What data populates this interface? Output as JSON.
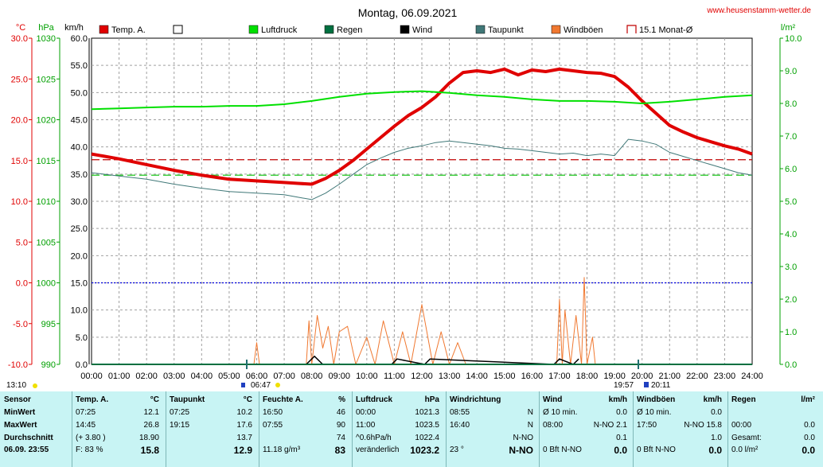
{
  "header": {
    "title": "Montag, 06.09.2021",
    "site": "www.heusenstamm-wetter.de"
  },
  "axes": {
    "temp_unit": "°C",
    "press_unit": "hPa",
    "wind_unit": "km/h",
    "rain_unit": "l/m²",
    "temp_ticks": [
      "30.0",
      "25.0",
      "20.0",
      "15.0",
      "10.0",
      "5.0",
      "0.0",
      "-5.0",
      "-10.0"
    ],
    "press_ticks": [
      "1030",
      "1025",
      "1020",
      "1015",
      "1010",
      "1005",
      "1000",
      "995",
      "990"
    ],
    "wind_ticks": [
      "60.0",
      "55.0",
      "50.0",
      "45.0",
      "40.0",
      "35.0",
      "30.0",
      "25.0",
      "20.0",
      "15.0",
      "10.0",
      "5.0",
      "0.0"
    ],
    "rain_ticks": [
      "10.0",
      "9.0",
      "8.0",
      "7.0",
      "6.0",
      "5.0",
      "4.0",
      "3.0",
      "2.0",
      "1.0",
      "0.0"
    ],
    "hour_ticks": [
      "00:00",
      "01:00",
      "02:00",
      "03:00",
      "04:00",
      "05:00",
      "06:00",
      "07:00",
      "08:00",
      "09:00",
      "10:00",
      "11:00",
      "12:00",
      "13:00",
      "14:00",
      "15:00",
      "16:00",
      "17:00",
      "18:00",
      "19:00",
      "20:00",
      "21:00",
      "22:00",
      "23:00",
      "24:00"
    ]
  },
  "legend": [
    {
      "label": "Temp. A.",
      "color": "#e00000",
      "style": "fill"
    },
    {
      "label": "",
      "color": "#ffffff",
      "style": "box"
    },
    {
      "label": "Luftdruck",
      "color": "#00e000",
      "style": "fill"
    },
    {
      "label": "Regen",
      "color": "#007040",
      "style": "fill"
    },
    {
      "label": "Wind",
      "color": "#000000",
      "style": "fill"
    },
    {
      "label": "Taupunkt",
      "color": "#407878",
      "style": "fill"
    },
    {
      "label": "Windböen",
      "color": "#f07830",
      "style": "fill"
    },
    {
      "label": "15.1 Monat-Ø",
      "color": "#c00000",
      "style": "outline"
    }
  ],
  "markers": {
    "sunrise_label": "06:47",
    "sunset_label": "19:57",
    "moon_label": "20:11",
    "left_label": "13:10"
  },
  "chart_data": {
    "type": "line",
    "title": "Montag, 06.09.2021",
    "x_unit": "hour",
    "xlim": [
      0,
      24
    ],
    "temp_range": [
      -10,
      30
    ],
    "pressure_range": [
      990,
      1030
    ],
    "wind_range": [
      0,
      60
    ],
    "rain_range": [
      0,
      10
    ],
    "series": [
      {
        "name": "Temp. A.",
        "axis": "temp",
        "color": "#e00000",
        "x": [
          0,
          1,
          2,
          3,
          4,
          5,
          6,
          7,
          7.5,
          8,
          8.5,
          9,
          9.5,
          10,
          10.5,
          11,
          11.5,
          12,
          12.5,
          13,
          13.5,
          14,
          14.5,
          15,
          15.5,
          16,
          16.5,
          17,
          17.5,
          18,
          18.5,
          19,
          19.5,
          20,
          20.5,
          21,
          21.5,
          22,
          22.5,
          23,
          23.5,
          24
        ],
        "y": [
          15.8,
          15.2,
          14.5,
          13.8,
          13.2,
          12.7,
          12.5,
          12.3,
          12.2,
          12.1,
          12.8,
          13.8,
          15.0,
          16.4,
          17.8,
          19.2,
          20.5,
          21.5,
          22.8,
          24.5,
          25.8,
          26.0,
          25.8,
          26.2,
          25.5,
          26.1,
          25.9,
          26.2,
          26.0,
          25.8,
          25.7,
          25.3,
          24.0,
          22.3,
          20.8,
          19.3,
          18.5,
          17.8,
          17.3,
          16.8,
          16.4,
          15.8
        ]
      },
      {
        "name": "Luftdruck",
        "axis": "pressure",
        "color": "#00e000",
        "x": [
          0,
          1,
          2,
          3,
          4,
          5,
          6,
          7,
          8,
          9,
          10,
          11,
          12,
          13,
          14,
          15,
          16,
          17,
          18,
          19,
          20,
          21,
          22,
          23,
          24
        ],
        "y": [
          1021.3,
          1021.4,
          1021.5,
          1021.6,
          1021.6,
          1021.7,
          1021.7,
          1021.9,
          1022.3,
          1022.8,
          1023.2,
          1023.4,
          1023.5,
          1023.3,
          1023.0,
          1022.8,
          1022.5,
          1022.3,
          1022.3,
          1022.2,
          1022.0,
          1022.2,
          1022.5,
          1022.8,
          1023.0
        ]
      },
      {
        "name": "Taupunkt",
        "axis": "temp",
        "color": "#407878",
        "x": [
          0,
          1,
          2,
          3,
          4,
          5,
          6,
          7,
          7.5,
          8,
          8.5,
          9,
          9.5,
          10,
          10.5,
          11,
          11.5,
          12,
          12.5,
          13,
          13.5,
          14,
          14.5,
          15,
          15.5,
          16,
          16.5,
          17,
          17.5,
          18,
          18.5,
          19,
          19.5,
          20,
          20.5,
          21,
          21.5,
          22,
          22.5,
          23,
          23.5,
          24
        ],
        "y": [
          13.5,
          13.1,
          12.7,
          12.1,
          11.6,
          11.2,
          11.0,
          10.8,
          10.5,
          10.2,
          11.0,
          12.1,
          13.3,
          14.5,
          15.3,
          16.0,
          16.5,
          16.8,
          17.2,
          17.4,
          17.2,
          17.0,
          16.8,
          16.5,
          16.4,
          16.2,
          16.0,
          15.8,
          15.9,
          15.6,
          15.8,
          15.6,
          17.6,
          17.4,
          17.0,
          16.0,
          15.5,
          15.0,
          14.5,
          14.0,
          13.5,
          13.2
        ]
      },
      {
        "name": "Windböen",
        "axis": "wind",
        "color": "#f07830",
        "x": [
          5.9,
          6.0,
          6.1,
          7.8,
          7.9,
          8.0,
          8.2,
          8.4,
          8.6,
          8.8,
          9.0,
          9.3,
          9.6,
          10.0,
          10.3,
          10.6,
          11.0,
          11.3,
          11.6,
          12.0,
          12.4,
          12.7,
          13.0,
          13.3,
          13.6,
          16.9,
          17.0,
          17.1,
          17.2,
          17.4,
          17.6,
          17.8,
          17.9,
          18.0,
          18.2,
          18.3
        ],
        "y": [
          0,
          4,
          0,
          0,
          8,
          0,
          9,
          3,
          7,
          0,
          6,
          7,
          0,
          5,
          0,
          8,
          0,
          6,
          0,
          11,
          0,
          6,
          0,
          4,
          0,
          0,
          12,
          0,
          10,
          0,
          9,
          0,
          16,
          0,
          5,
          0
        ]
      },
      {
        "name": "Wind",
        "axis": "wind",
        "color": "#000000",
        "x": [
          7.8,
          8.1,
          8.4,
          10.9,
          11.1,
          12.1,
          12.3,
          16.8,
          17.0,
          17.5,
          17.7
        ],
        "y": [
          0,
          1.5,
          0,
          0,
          1,
          0,
          1,
          0,
          1,
          0,
          1
        ]
      }
    ],
    "reference_lines": [
      {
        "name": "15.1 Monat-Ø",
        "axis": "temp",
        "value": 15.1
      },
      {
        "axis": "temp",
        "value": 13.2
      },
      {
        "axis": "wind",
        "value": 15.0
      }
    ]
  },
  "table": {
    "columns": [
      {
        "rows": [
          {
            "l": "Sensor",
            "r": "",
            "bold": true
          },
          {
            "l": "MinWert",
            "r": "",
            "bold": true
          },
          {
            "l": "MaxWert",
            "r": "",
            "bold": true
          },
          {
            "l": "Durchschnitt",
            "r": "",
            "bold": true
          },
          {
            "l": "06.09. 23:55",
            "r": "",
            "bold": true
          }
        ]
      },
      {
        "rows": [
          {
            "l": "Temp. A.",
            "r": "°C",
            "bold": true
          },
          {
            "l": "07:25",
            "r": "12.1"
          },
          {
            "l": "14:45",
            "r": "26.8"
          },
          {
            "l": "(+ 3.80 )",
            "r": "18.90"
          },
          {
            "l": "F: 83 %",
            "r": "15.8",
            "big": true
          }
        ]
      },
      {
        "rows": [
          {
            "l": "Taupunkt",
            "r": "°C",
            "bold": true
          },
          {
            "l": "07:25",
            "r": "10.2"
          },
          {
            "l": "19:15",
            "r": "17.6"
          },
          {
            "l": "",
            "r": "13.7"
          },
          {
            "l": "",
            "r": "12.9",
            "big": true
          }
        ]
      },
      {
        "rows": [
          {
            "l": "Feuchte A.",
            "r": "%",
            "bold": true
          },
          {
            "l": "16:50",
            "r": "46"
          },
          {
            "l": "07:55",
            "r": "90"
          },
          {
            "l": "",
            "r": "74"
          },
          {
            "l": "11.18 g/m³",
            "r": "83",
            "big": true
          }
        ]
      },
      {
        "rows": [
          {
            "l": "Luftdruck",
            "r": "hPa",
            "bold": true
          },
          {
            "l": "00:00",
            "r": "1021.3"
          },
          {
            "l": "11:00",
            "r": "1023.5"
          },
          {
            "l": "^0.6hPa/h",
            "r": "1022.4"
          },
          {
            "l": "veränderlich",
            "r": "1023.2",
            "big": true
          }
        ]
      },
      {
        "rows": [
          {
            "l": "Windrichtung",
            "r": "",
            "bold": true
          },
          {
            "l": "08:55",
            "r": "N"
          },
          {
            "l": "16:40",
            "r": "N"
          },
          {
            "l": "",
            "r": "N-NO"
          },
          {
            "l": "23 °",
            "r": "N-NO",
            "big": true
          }
        ]
      },
      {
        "rows": [
          {
            "l": "Wind",
            "r": "km/h",
            "bold": true
          },
          {
            "l": "Ø 10 min.",
            "r": "0.0"
          },
          {
            "l": "08:00",
            "r": "N-NO 2.1"
          },
          {
            "l": "",
            "r": "0.1"
          },
          {
            "l": "0 Bft N-NO",
            "r": "0.0",
            "big": true
          }
        ]
      },
      {
        "rows": [
          {
            "l": "Windböen",
            "r": "km/h",
            "bold": true
          },
          {
            "l": "Ø 10 min.",
            "r": "0.0"
          },
          {
            "l": "17:50",
            "r": "N-NO 15.8"
          },
          {
            "l": "",
            "r": "1.0"
          },
          {
            "l": "0 Bft N-NO",
            "r": "0.0",
            "big": true
          }
        ]
      },
      {
        "rows": [
          {
            "l": "Regen",
            "r": "l/m²",
            "bold": true
          },
          {
            "l": "",
            "r": ""
          },
          {
            "l": "00:00",
            "r": "0.0"
          },
          {
            "l": "Gesamt:",
            "r": "0.0"
          },
          {
            "l": "0.0 l/m²",
            "r": "0.0",
            "big": true
          }
        ]
      }
    ]
  }
}
